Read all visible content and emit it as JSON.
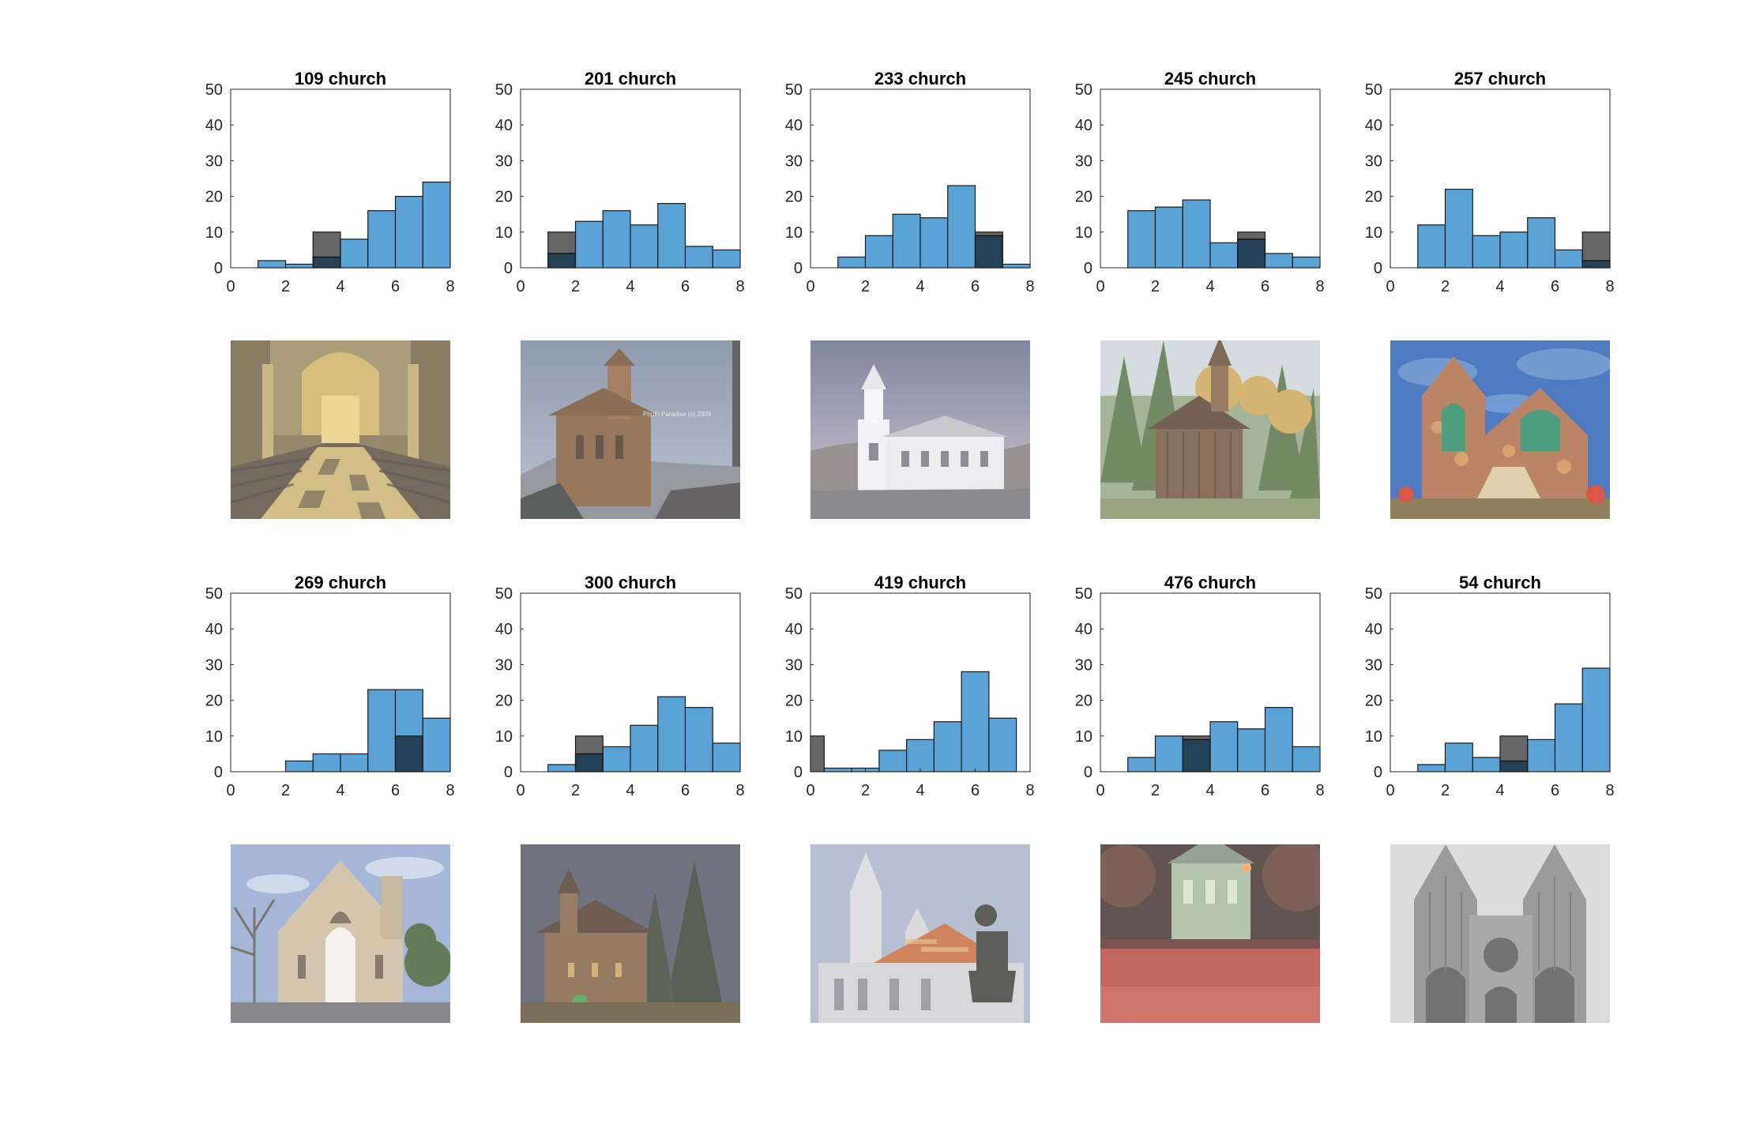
{
  "colors": {
    "series_all": "#5ba3d6",
    "series_selected": "#000000",
    "axis": "#262626",
    "background": "#ffffff"
  },
  "chart_data": [
    {
      "type": "bar",
      "title": "109 church",
      "xlim": [
        0,
        8
      ],
      "ylim": [
        0,
        50
      ],
      "xticks": [
        0,
        2,
        4,
        6,
        8
      ],
      "yticks": [
        0,
        10,
        20,
        30,
        40,
        50
      ],
      "bin_edges": [
        0,
        1,
        2,
        3,
        4,
        5,
        6,
        7,
        8
      ],
      "bin_width": 1,
      "legend": "none",
      "grid": false,
      "series": [
        {
          "values": [
            0,
            2,
            1,
            3,
            8,
            16,
            20,
            24
          ]
        },
        {
          "values": [
            0,
            0,
            0,
            10,
            0,
            0,
            0,
            0
          ]
        }
      ]
    },
    {
      "type": "bar",
      "title": "201 church",
      "xlim": [
        0,
        8
      ],
      "ylim": [
        0,
        50
      ],
      "xticks": [
        0,
        2,
        4,
        6,
        8
      ],
      "yticks": [
        0,
        10,
        20,
        30,
        40,
        50
      ],
      "bin_edges": [
        0,
        1,
        2,
        3,
        4,
        5,
        6,
        7,
        8
      ],
      "bin_width": 1,
      "legend": "none",
      "grid": false,
      "series": [
        {
          "values": [
            0,
            4,
            13,
            16,
            12,
            18,
            6,
            5
          ]
        },
        {
          "values": [
            0,
            10,
            0,
            0,
            0,
            0,
            0,
            0
          ]
        }
      ]
    },
    {
      "type": "bar",
      "title": "233 church",
      "xlim": [
        0,
        8
      ],
      "ylim": [
        0,
        50
      ],
      "xticks": [
        0,
        2,
        4,
        6,
        8
      ],
      "yticks": [
        0,
        10,
        20,
        30,
        40,
        50
      ],
      "bin_edges": [
        0,
        1,
        2,
        3,
        4,
        5,
        6,
        7,
        8
      ],
      "bin_width": 1,
      "legend": "none",
      "grid": false,
      "series": [
        {
          "values": [
            0,
            3,
            9,
            15,
            14,
            23,
            9,
            1
          ]
        },
        {
          "values": [
            0,
            0,
            0,
            0,
            0,
            0,
            10,
            0
          ]
        }
      ]
    },
    {
      "type": "bar",
      "title": "245 church",
      "xlim": [
        0,
        8
      ],
      "ylim": [
        0,
        50
      ],
      "xticks": [
        0,
        2,
        4,
        6,
        8
      ],
      "yticks": [
        0,
        10,
        20,
        30,
        40,
        50
      ],
      "bin_edges": [
        0,
        1,
        2,
        3,
        4,
        5,
        6,
        7,
        8
      ],
      "bin_width": 1,
      "legend": "none",
      "grid": false,
      "series": [
        {
          "values": [
            0,
            16,
            17,
            19,
            7,
            8,
            4,
            3
          ]
        },
        {
          "values": [
            0,
            0,
            0,
            0,
            0,
            10,
            0,
            0
          ]
        }
      ]
    },
    {
      "type": "bar",
      "title": "257 church",
      "xlim": [
        0,
        8
      ],
      "ylim": [
        0,
        50
      ],
      "xticks": [
        0,
        2,
        4,
        6,
        8
      ],
      "yticks": [
        0,
        10,
        20,
        30,
        40,
        50
      ],
      "bin_edges": [
        0,
        1,
        2,
        3,
        4,
        5,
        6,
        7,
        8
      ],
      "bin_width": 1,
      "legend": "none",
      "grid": false,
      "series": [
        {
          "values": [
            0,
            12,
            22,
            9,
            10,
            14,
            5,
            2
          ]
        },
        {
          "values": [
            0,
            0,
            0,
            0,
            0,
            0,
            0,
            10
          ]
        }
      ]
    },
    {
      "type": "bar",
      "title": "269 church",
      "xlim": [
        0,
        8
      ],
      "ylim": [
        0,
        50
      ],
      "xticks": [
        0,
        2,
        4,
        6,
        8
      ],
      "yticks": [
        0,
        10,
        20,
        30,
        40,
        50
      ],
      "bin_edges": [
        0,
        1,
        2,
        3,
        4,
        5,
        6,
        7,
        8
      ],
      "bin_width": 1,
      "legend": "none",
      "grid": false,
      "series": [
        {
          "values": [
            0,
            0,
            3,
            5,
            5,
            23,
            23,
            15
          ]
        },
        {
          "values": [
            0,
            0,
            0,
            0,
            0,
            0,
            10,
            0
          ]
        }
      ]
    },
    {
      "type": "bar",
      "title": "300 church",
      "xlim": [
        0,
        8
      ],
      "ylim": [
        0,
        50
      ],
      "xticks": [
        0,
        2,
        4,
        6,
        8
      ],
      "yticks": [
        0,
        10,
        20,
        30,
        40,
        50
      ],
      "bin_edges": [
        0,
        1,
        2,
        3,
        4,
        5,
        6,
        7,
        8
      ],
      "bin_width": 1,
      "legend": "none",
      "grid": false,
      "series": [
        {
          "values": [
            0,
            2,
            5,
            7,
            13,
            21,
            18,
            8
          ]
        },
        {
          "values": [
            0,
            0,
            10,
            0,
            0,
            0,
            0,
            0
          ]
        }
      ]
    },
    {
      "type": "bar",
      "title": "419 church",
      "xlim": [
        0,
        8
      ],
      "ylim": [
        0,
        50
      ],
      "xticks": [
        0,
        2,
        4,
        6,
        8
      ],
      "yticks": [
        0,
        10,
        20,
        30,
        40,
        50
      ],
      "bin_edges": [
        0,
        0.5,
        1.5,
        2.5,
        3.5,
        4.5,
        5.5,
        6.5,
        7.5
      ],
      "bin_width": 1,
      "legend": "none",
      "grid": false,
      "series": [
        {
          "values": [
            0,
            1,
            1,
            6,
            9,
            14,
            28,
            15
          ]
        },
        {
          "values": [
            10,
            0,
            0,
            0,
            0,
            0,
            0,
            0
          ]
        }
      ],
      "selected_width": 0.5
    },
    {
      "type": "bar",
      "title": "476 church",
      "xlim": [
        0,
        8
      ],
      "ylim": [
        0,
        50
      ],
      "xticks": [
        0,
        2,
        4,
        6,
        8
      ],
      "yticks": [
        0,
        10,
        20,
        30,
        40,
        50
      ],
      "bin_edges": [
        0,
        1,
        2,
        3,
        4,
        5,
        6,
        7,
        8
      ],
      "bin_width": 1,
      "legend": "none",
      "grid": false,
      "series": [
        {
          "values": [
            0,
            4,
            10,
            9,
            14,
            12,
            18,
            7
          ]
        },
        {
          "values": [
            0,
            0,
            0,
            10,
            0,
            0,
            0,
            0
          ]
        }
      ]
    },
    {
      "type": "bar",
      "title": "54 church",
      "xlim": [
        0,
        8
      ],
      "ylim": [
        0,
        50
      ],
      "xticks": [
        0,
        2,
        4,
        6,
        8
      ],
      "yticks": [
        0,
        10,
        20,
        30,
        40,
        50
      ],
      "bin_edges": [
        0,
        1,
        2,
        3,
        4,
        5,
        6,
        7,
        8
      ],
      "bin_width": 1,
      "legend": "none",
      "grid": false,
      "series": [
        {
          "values": [
            0,
            2,
            8,
            4,
            3,
            9,
            19,
            29
          ]
        },
        {
          "values": [
            0,
            0,
            0,
            0,
            10,
            0,
            0,
            0
          ]
        }
      ]
    }
  ],
  "photos": [
    {
      "scene": "church-interior-golden-altar-icon"
    },
    {
      "scene": "church-on-hill-at-dusk-icon",
      "caption": "Photo Paradise (c) 2009"
    },
    {
      "scene": "white-wooden-church-icon"
    },
    {
      "scene": "wooden-chapel-in-forest-icon"
    },
    {
      "scene": "stone-church-painting-icon"
    },
    {
      "scene": "stone-gothic-church-blue-sky-icon"
    },
    {
      "scene": "church-at-night-with-trees-icon"
    },
    {
      "scene": "matthias-church-with-statue-icon"
    },
    {
      "scene": "church-at-night-red-lights-icon"
    },
    {
      "scene": "gothic-cathedral-bw-icon"
    }
  ]
}
